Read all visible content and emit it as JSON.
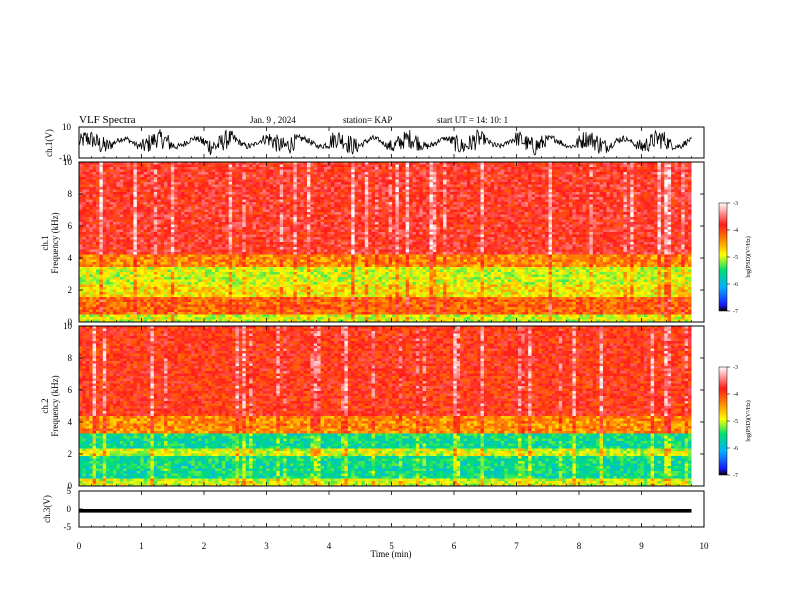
{
  "header": {
    "title": "VLF Spectra",
    "date": "Jan. 9 , 2024",
    "station": "station= KAP",
    "start": "start UT =  14: 10: 1"
  },
  "colors": {
    "spectrum_low": "#1133cc",
    "spectrum_mid": "#00dd66",
    "spectrum_high": "#ff2a2a",
    "background": "#ffffff",
    "trace": "#000000"
  },
  "chart_data": [
    {
      "type": "line",
      "panel": "ch1-waveform",
      "ylabel": "ch.1(V)",
      "ylim": [
        -10,
        10
      ],
      "y_ticks": [
        "10",
        "-10"
      ],
      "xlim": [
        0,
        10
      ],
      "data_extent_min": 9.8,
      "description_values": {
        "baseline_min": -8,
        "baseline_max": 8
      }
    },
    {
      "type": "heatmap",
      "panel": "ch1-spectrogram",
      "ylabel": "ch.1\nFrequency (kHz)",
      "ylim": [
        0,
        10
      ],
      "y_ticks": [
        "0",
        "2",
        "4",
        "6",
        "8",
        "10"
      ],
      "xlim": [
        0,
        10
      ],
      "bands": [
        {
          "from_khz": 0.0,
          "to_khz": 0.5,
          "log_psd": -5.0
        },
        {
          "from_khz": 0.5,
          "to_khz": 1.5,
          "log_psd": -4.2
        },
        {
          "from_khz": 1.5,
          "to_khz": 2.3,
          "log_psd": -4.8
        },
        {
          "from_khz": 2.3,
          "to_khz": 3.5,
          "log_psd": -5.0
        },
        {
          "from_khz": 3.5,
          "to_khz": 4.2,
          "log_psd": -4.4
        },
        {
          "from_khz": 4.2,
          "to_khz": 10.0,
          "log_psd": -3.8
        }
      ],
      "colorbar": {
        "label": "log(PSD)(V²/Hz)",
        "range": [
          -7,
          -3
        ],
        "ticks": [
          "-3",
          "-4",
          "-5",
          "-6",
          "-7"
        ]
      }
    },
    {
      "type": "heatmap",
      "panel": "ch2-spectrogram",
      "ylabel": "ch.2\nFrequency (kHz)",
      "ylim": [
        0,
        10
      ],
      "y_ticks": [
        "0",
        "2",
        "4",
        "6",
        "8",
        "10"
      ],
      "xlim": [
        0,
        10
      ],
      "bands": [
        {
          "from_khz": 0.0,
          "to_khz": 0.4,
          "log_psd": -5.0
        },
        {
          "from_khz": 0.4,
          "to_khz": 1.8,
          "log_psd": -5.6
        },
        {
          "from_khz": 1.8,
          "to_khz": 2.4,
          "log_psd": -5.0
        },
        {
          "from_khz": 2.4,
          "to_khz": 3.3,
          "log_psd": -5.6
        },
        {
          "from_khz": 3.3,
          "to_khz": 4.4,
          "log_psd": -4.4
        },
        {
          "from_khz": 4.4,
          "to_khz": 10.0,
          "log_psd": -3.9
        }
      ],
      "colorbar": {
        "label": "log(PSD)(V²/Hz)",
        "range": [
          -7,
          -3
        ],
        "ticks": [
          "-3",
          "-4",
          "-5",
          "-6",
          "-7"
        ]
      }
    },
    {
      "type": "line",
      "panel": "ch3-waveform",
      "ylabel": "ch.3(V)",
      "ylim": [
        -5,
        5
      ],
      "y_ticks": [
        "5",
        "0",
        "-5"
      ],
      "xlim": [
        0,
        10
      ],
      "data_extent_min": 9.8,
      "level_min": -1.0,
      "level_max": 0.0
    }
  ],
  "x_axis": {
    "label": "Time (min)",
    "ticks": [
      "0",
      "1",
      "2",
      "3",
      "4",
      "5",
      "6",
      "7",
      "8",
      "9",
      "10"
    ],
    "range": [
      0,
      10
    ]
  }
}
